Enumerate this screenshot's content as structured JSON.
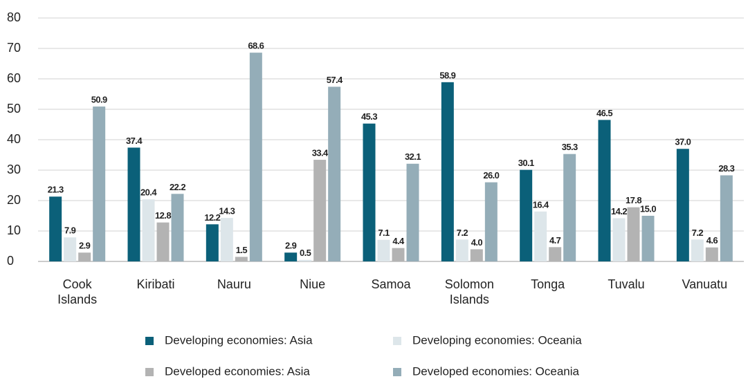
{
  "chart_data": {
    "type": "bar",
    "categories": [
      "Cook Islands",
      "Kiribati",
      "Nauru",
      "Niue",
      "Samoa",
      "Solomon Islands",
      "Tonga",
      "Tuvalu",
      "Vanuatu"
    ],
    "series": [
      {
        "name": "Developing economies: Asia",
        "color": "#0b6079",
        "values": [
          21.3,
          37.4,
          12.2,
          2.9,
          45.3,
          58.9,
          30.1,
          46.5,
          37.0
        ],
        "value_labels": [
          "21.3",
          "37.4",
          "12.2",
          "2.9",
          "45.3",
          "58.9",
          "30.1",
          "46.5",
          "37.0"
        ]
      },
      {
        "name": "Developing economies: Oceania",
        "color": "#dde6ea",
        "values": [
          7.9,
          20.4,
          14.3,
          0.5,
          7.1,
          7.2,
          16.4,
          14.2,
          7.2
        ],
        "value_labels": [
          "7.9",
          "20.4",
          "14.3",
          "0.5",
          "7.1",
          "7.2",
          "16.4",
          "14.2",
          "7.2"
        ]
      },
      {
        "name": "Developed economies: Asia",
        "color": "#b3b3b3",
        "values": [
          2.9,
          12.8,
          1.5,
          33.4,
          4.4,
          4.0,
          4.7,
          17.8,
          4.6
        ],
        "value_labels": [
          "2.9",
          "12.8",
          "1.5",
          "33.4",
          "4.4",
          "4.0",
          "4.7",
          "17.8",
          "4.6"
        ]
      },
      {
        "name": "Developed economies: Oceania",
        "color": "#94adb8",
        "values": [
          50.9,
          22.2,
          68.6,
          57.4,
          32.1,
          26.0,
          35.3,
          15.0,
          28.3
        ],
        "value_labels": [
          "50.9",
          "22.2",
          "68.6",
          "57.4",
          "32.1",
          "26.0",
          "35.3",
          "15.0",
          "28.3"
        ]
      }
    ],
    "ylim": [
      0,
      80
    ],
    "yticks": [
      0,
      10,
      20,
      30,
      40,
      50,
      60,
      70,
      80
    ],
    "grid": true,
    "legend": "bottom"
  }
}
